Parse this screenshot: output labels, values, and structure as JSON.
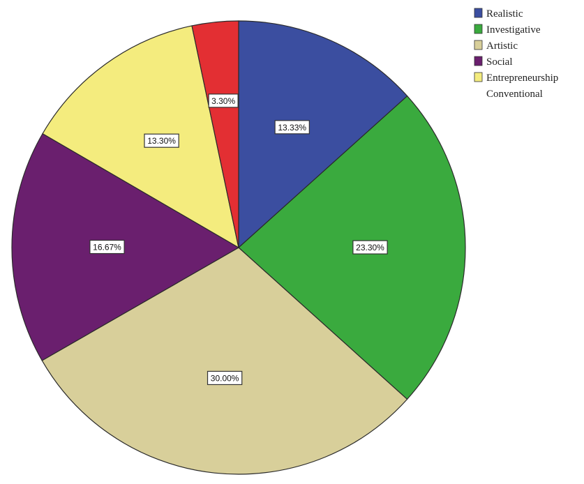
{
  "chart_data": {
    "type": "pie",
    "title": "",
    "categories": [
      "Realistic",
      "Investigative",
      "Artistic",
      "Social",
      "Entrepreneurship",
      "Conventional"
    ],
    "values": [
      13.33,
      23.3,
      30.0,
      16.67,
      13.3,
      3.3
    ],
    "data_labels": [
      "13.33%",
      "23.30%",
      "30.00%",
      "16.67%",
      "13.30%",
      "3.30%"
    ],
    "colors": [
      "#3b4ea0",
      "#3aaa3e",
      "#d8cf9a",
      "#6a1f6e",
      "#f4ec7e",
      "#e32f33"
    ],
    "legend": {
      "placement": "top-right",
      "entries": [
        "Realistic",
        "Investigative",
        "Artistic",
        "Social",
        "Entrepreneurship",
        "Conventional"
      ]
    }
  }
}
